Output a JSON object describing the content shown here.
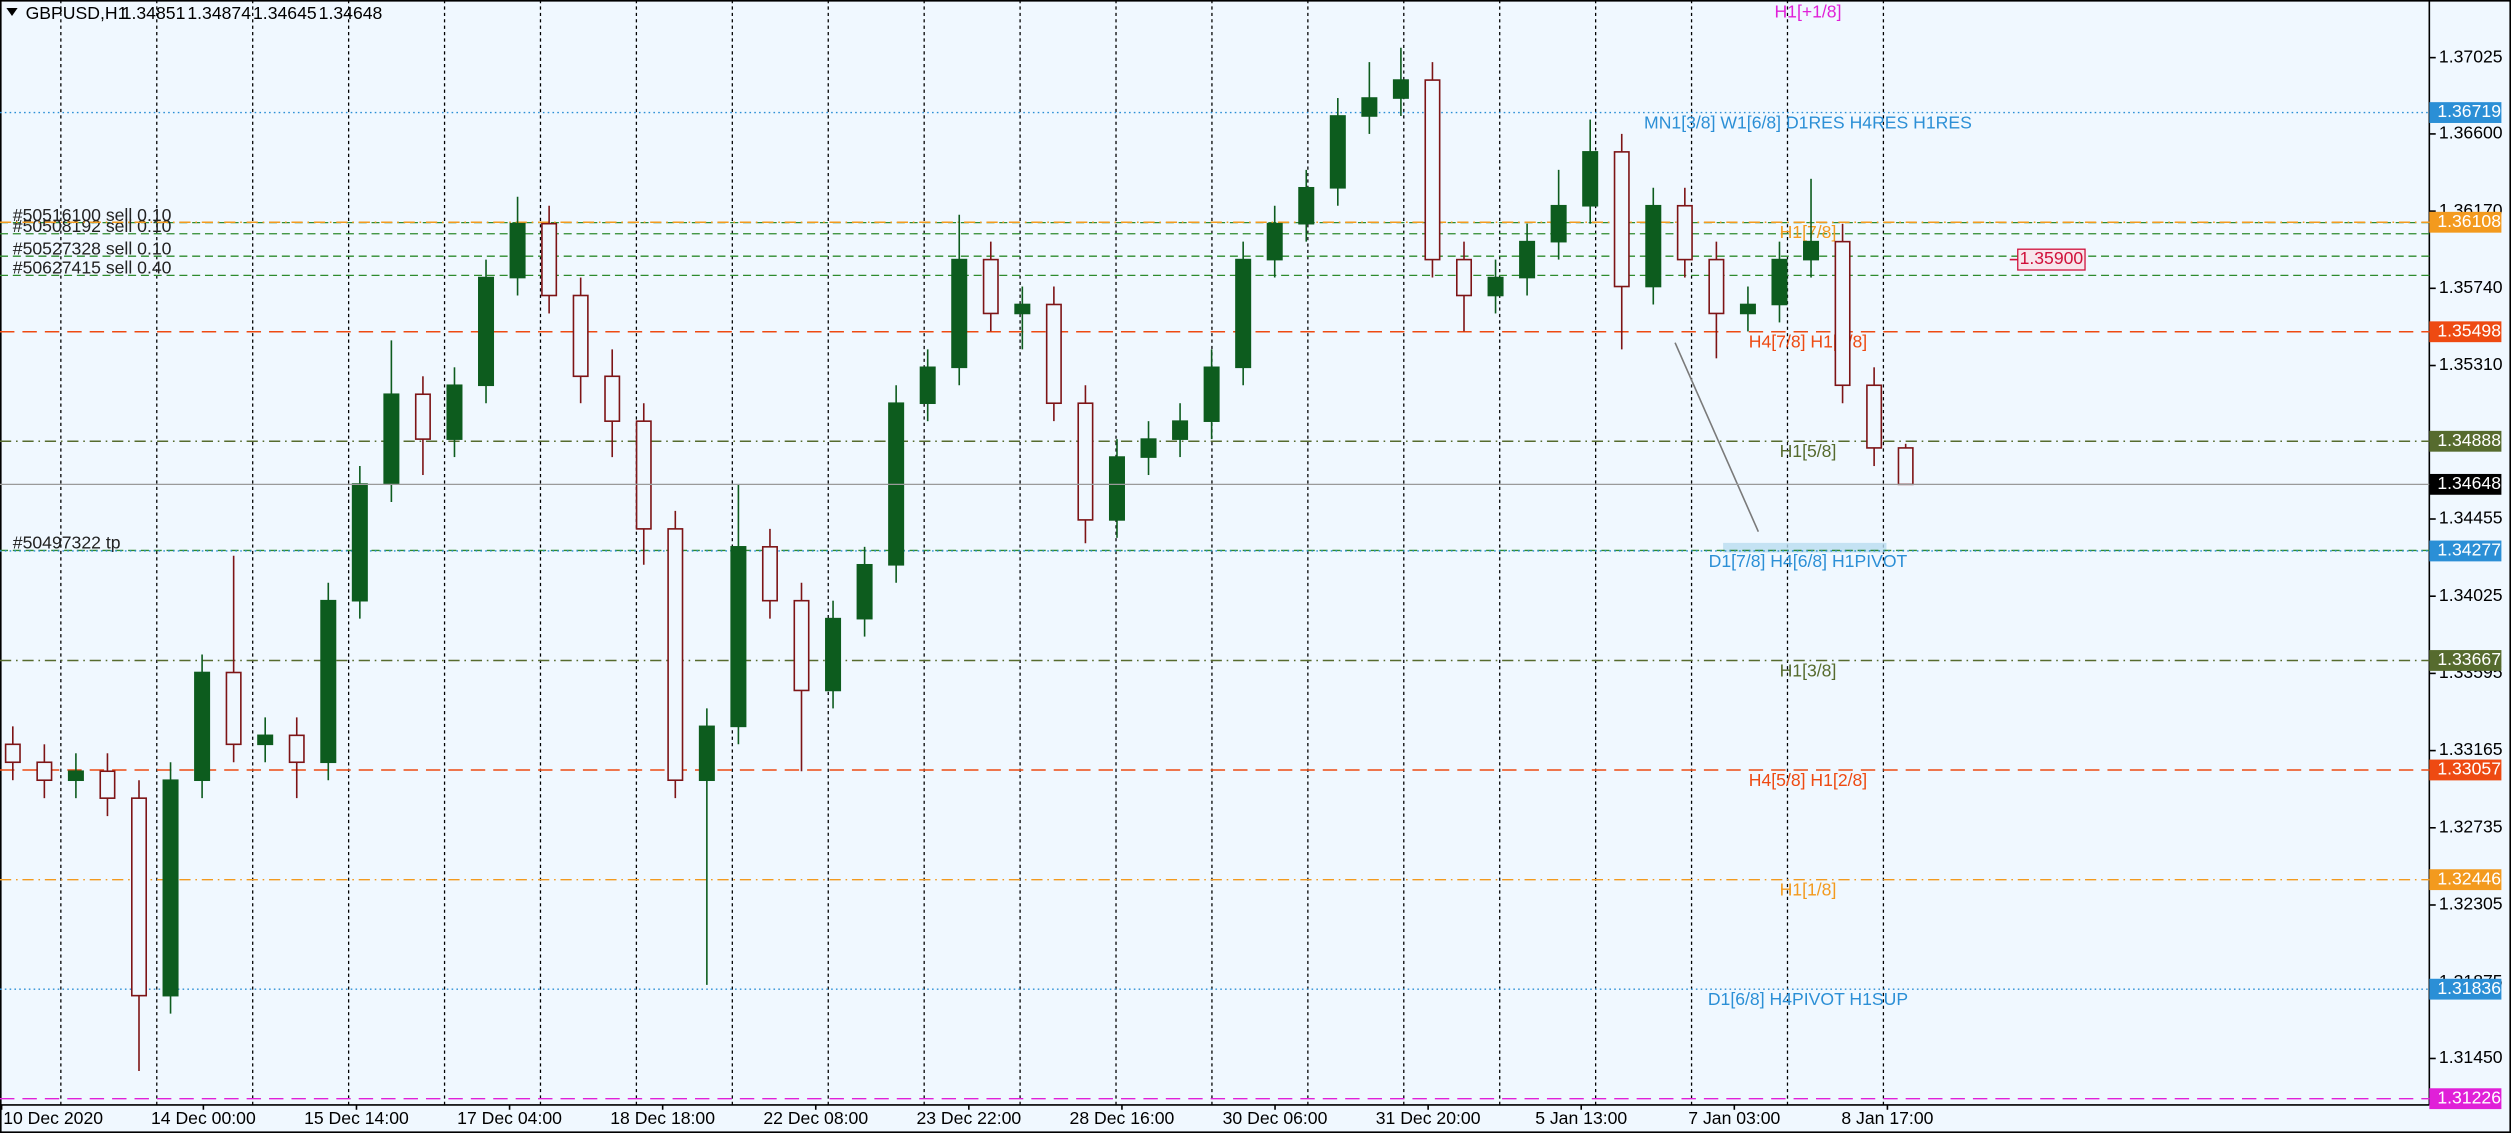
{
  "chart_data": {
    "type": "candlestick",
    "symbol": "GBPUSD,H1",
    "series": {
      "open": [
        1.332,
        1.331,
        1.33,
        1.3305,
        1.329,
        1.318,
        1.33,
        1.336,
        1.332,
        1.3325,
        1.331,
        1.34,
        1.3465,
        1.3515,
        1.349,
        1.352,
        1.358,
        1.361,
        1.357,
        1.3525,
        1.35,
        1.344,
        1.33,
        1.333,
        1.343,
        1.34,
        1.335,
        1.339,
        1.342,
        1.351,
        1.353,
        1.359,
        1.356,
        1.3565,
        1.351,
        1.3445,
        1.348,
        1.349,
        1.35,
        1.353,
        1.359,
        1.361,
        1.363,
        1.367,
        1.368,
        1.369,
        1.359,
        1.357,
        1.358,
        1.36,
        1.362,
        1.365,
        1.3575,
        1.362,
        1.359,
        1.356,
        1.3565,
        1.359,
        1.36,
        1.352,
        1.34851
      ],
      "high": [
        1.333,
        1.332,
        1.3315,
        1.3315,
        1.33,
        1.331,
        1.337,
        1.3425,
        1.3335,
        1.3335,
        1.341,
        1.3475,
        1.3545,
        1.3525,
        1.353,
        1.359,
        1.3625,
        1.362,
        1.358,
        1.354,
        1.351,
        1.345,
        1.334,
        1.3465,
        1.344,
        1.341,
        1.34,
        1.343,
        1.352,
        1.354,
        1.3615,
        1.36,
        1.3575,
        1.3575,
        1.352,
        1.349,
        1.35,
        1.351,
        1.354,
        1.36,
        1.362,
        1.364,
        1.368,
        1.37,
        1.3708,
        1.37,
        1.36,
        1.359,
        1.361,
        1.364,
        1.3668,
        1.366,
        1.363,
        1.363,
        1.36,
        1.3575,
        1.36,
        1.3635,
        1.361,
        1.353,
        1.34874
      ],
      "low": [
        1.33,
        1.329,
        1.329,
        1.328,
        1.3138,
        1.317,
        1.329,
        1.331,
        1.331,
        1.329,
        1.33,
        1.339,
        1.3455,
        1.347,
        1.348,
        1.351,
        1.357,
        1.356,
        1.351,
        1.348,
        1.342,
        1.329,
        1.3186,
        1.332,
        1.339,
        1.3305,
        1.334,
        1.338,
        1.341,
        1.35,
        1.352,
        1.355,
        1.354,
        1.35,
        1.3432,
        1.3435,
        1.347,
        1.348,
        1.349,
        1.352,
        1.358,
        1.36,
        1.362,
        1.366,
        1.367,
        1.358,
        1.355,
        1.356,
        1.357,
        1.359,
        1.361,
        1.354,
        1.3565,
        1.358,
        1.3535,
        1.355,
        1.3555,
        1.358,
        1.351,
        1.3475,
        1.34645
      ],
      "close": [
        1.331,
        1.33,
        1.3305,
        1.329,
        1.318,
        1.33,
        1.336,
        1.332,
        1.3325,
        1.331,
        1.34,
        1.3465,
        1.3515,
        1.349,
        1.352,
        1.358,
        1.361,
        1.357,
        1.3525,
        1.35,
        1.344,
        1.33,
        1.333,
        1.343,
        1.34,
        1.335,
        1.339,
        1.342,
        1.351,
        1.353,
        1.359,
        1.356,
        1.3565,
        1.351,
        1.3445,
        1.348,
        1.349,
        1.35,
        1.353,
        1.359,
        1.361,
        1.363,
        1.367,
        1.368,
        1.369,
        1.359,
        1.357,
        1.358,
        1.36,
        1.362,
        1.365,
        1.3575,
        1.362,
        1.359,
        1.356,
        1.3565,
        1.359,
        1.36,
        1.352,
        1.34851,
        1.34648
      ]
    },
    "up_color": "#0d5c1e",
    "down_color": "#7d1416",
    "ylim": [
      1.31191,
      1.37346
    ],
    "yticks": [
      1.37025,
      {
        "value": 1.366,
        "label": "1.36600"
      },
      {
        "value": 1.3617,
        "label": "1.36170"
      },
      {
        "value": 1.3574,
        "label": "1.35740"
      },
      {
        "value": 1.3531,
        "label": "1.35310"
      },
      1.34455,
      1.34025,
      1.33595,
      1.33165,
      1.32735,
      1.32305,
      1.31875,
      {
        "value": 1.3145,
        "label": "1.31450"
      }
    ],
    "xlabels": [
      "10 Dec 2020",
      "14 Dec 00:00",
      "15 Dec 14:00",
      "17 Dec 04:00",
      "18 Dec 18:00",
      "22 Dec 08:00",
      "23 Dec 22:00",
      "28 Dec 16:00",
      "30 Dec 06:00",
      "31 Dec 20:00",
      "5 Jan 13:00",
      "7 Jan 03:00",
      "8 Jan 17:00"
    ],
    "levels": [
      {
        "price": 1.36719,
        "color": "#2b8fd6",
        "style": "dot",
        "text": "MN1[3/8] W1[6/8] D1RES H4RES H1RES"
      },
      {
        "price": 1.36108,
        "color": "#f39a1e",
        "style": "dashdot",
        "text": "H1[7/8]"
      },
      {
        "price": 1.35498,
        "color": "#ee4a12",
        "style": "dash",
        "text": "H4[7/8] H1[6/8]"
      },
      {
        "price": 1.34888,
        "color": "#566b2e",
        "style": "dashdot",
        "text": "H1[5/8]"
      },
      {
        "price": 1.34277,
        "color": "#2b8fd6",
        "style": "dot",
        "text": "D1[7/8] H4[6/8] H1PIVOT"
      },
      {
        "price": 1.33667,
        "color": "#566b2e",
        "style": "dashdot",
        "text": "H1[3/8]"
      },
      {
        "price": 1.33057,
        "color": "#ee4a12",
        "style": "dash",
        "text": "H4[5/8] H1[2/8]"
      },
      {
        "price": 1.32446,
        "color": "#f39a1e",
        "style": "dashdot",
        "text": "H1[1/8]"
      },
      {
        "price": 1.31836,
        "color": "#2b8fd6",
        "style": "dot",
        "text": "D1[6/8] H4PIVOT H1SUP"
      },
      {
        "price": 1.31226,
        "color": "#e020d8",
        "style": "dash"
      }
    ],
    "top_annotation": {
      "text": "H1[+1/8]",
      "color": "#e020d8"
    },
    "orders": [
      {
        "label": "#50516100 sell 0.10",
        "price": 1.36106
      },
      {
        "label": "#50508192 sell 0.10",
        "price": 1.36044
      },
      {
        "label": "#50527328 sell 0.10",
        "price": 1.35919
      },
      {
        "label": "#50627415 sell 0.40",
        "price": 1.35812
      },
      {
        "label": "#50497322 tp",
        "price": 1.3428
      }
    ],
    "order_color": "#2e8b2e",
    "pending": {
      "value": 1.359,
      "label": "1.35900",
      "color": "#d0103a"
    }
  }
}
